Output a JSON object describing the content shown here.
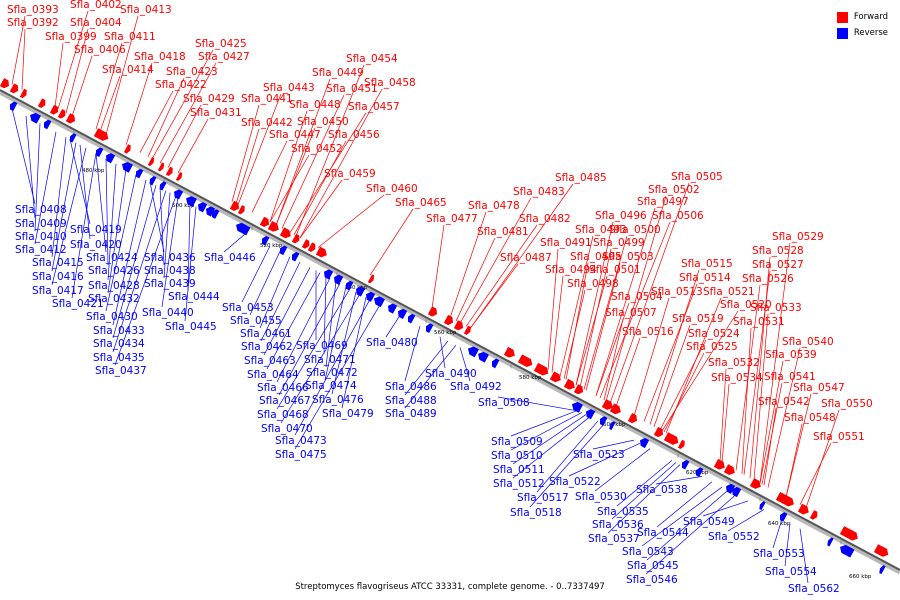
{
  "legend": {
    "forward": {
      "label": "Forward",
      "color": "#ff0000"
    },
    "reverse": {
      "label": "Reverse",
      "color": "#0000ff"
    }
  },
  "caption": "Streptomyces flavogriseus ATCC 33331, complete genome. - 0..7337497",
  "ticks": [
    "480 kbp",
    "500 kbp",
    "520 kbp",
    "540 kbp",
    "560 kbp",
    "580 kbp",
    "600 kbp",
    "620 kbp",
    "640 kbp",
    "660 kbp"
  ],
  "forward_genes": [
    "Sfla_0393",
    "Sfla_0392",
    "Sfla_0402",
    "Sfla_0404",
    "Sfla_0399",
    "Sfla_0413",
    "Sfla_0411",
    "Sfla_0406",
    "Sfla_0414",
    "Sfla_0418",
    "Sfla_0425",
    "Sfla_0427",
    "Sfla_0423",
    "Sfla_0422",
    "Sfla_0429",
    "Sfla_0431",
    "Sfla_0443",
    "Sfla_0441",
    "Sfla_0442",
    "Sfla_0447",
    "Sfla_0454",
    "Sfla_0449",
    "Sfla_0451",
    "Sfla_0458",
    "Sfla_0448",
    "Sfla_0457",
    "Sfla_0450",
    "Sfla_0456",
    "Sfla_0452",
    "Sfla_0459",
    "Sfla_0460",
    "Sfla_0465",
    "Sfla_0485",
    "Sfla_0483",
    "Sfla_0478",
    "Sfla_0477",
    "Sfla_0482",
    "Sfla_0481",
    "Sfla_0487",
    "Sfla_0505",
    "Sfla_0502",
    "Sfla_0497",
    "Sfla_0496",
    "Sfla_0506",
    "Sfla_0493",
    "Sfla_0500",
    "Sfla_0491",
    "Sfla_0499",
    "Sfla_0495",
    "Sfla_0503",
    "Sfla_0494",
    "Sfla_0501",
    "Sfla_0498",
    "Sfla_0504",
    "Sfla_0507",
    "Sfla_0515",
    "Sfla_0514",
    "Sfla_0513",
    "Sfla_0516",
    "Sfla_0521",
    "Sfla_0519",
    "Sfla_0520",
    "Sfla_0525",
    "Sfla_0524",
    "Sfla_0529",
    "Sfla_0528",
    "Sfla_0527",
    "Sfla_0526",
    "Sfla_0533",
    "Sfla_0531",
    "Sfla_0532",
    "Sfla_0534",
    "Sfla_0540",
    "Sfla_0539",
    "Sfla_0541",
    "Sfla_0547",
    "Sfla_0542",
    "Sfla_0550",
    "Sfla_0548",
    "Sfla_0551"
  ],
  "reverse_genes": [
    "Sfla_0408",
    "Sfla_0409",
    "Sfla_0410",
    "Sfla_0412",
    "Sfla_0415",
    "Sfla_0416",
    "Sfla_0417",
    "Sfla_0421",
    "Sfla_0419",
    "Sfla_0420",
    "Sfla_0424",
    "Sfla_0426",
    "Sfla_0428",
    "Sfla_0432",
    "Sfla_0430",
    "Sfla_0433",
    "Sfla_0434",
    "Sfla_0435",
    "Sfla_0437",
    "Sfla_0436",
    "Sfla_0438",
    "Sfla_0439",
    "Sfla_0444",
    "Sfla_0440",
    "Sfla_0445",
    "Sfla_0446",
    "Sfla_0453",
    "Sfla_0455",
    "Sfla_0461",
    "Sfla_0462",
    "Sfla_0463",
    "Sfla_0464",
    "Sfla_0466",
    "Sfla_0467",
    "Sfla_0468",
    "Sfla_0470",
    "Sfla_0473",
    "Sfla_0475",
    "Sfla_0469",
    "Sfla_0471",
    "Sfla_0472",
    "Sfla_0474",
    "Sfla_0476",
    "Sfla_0479",
    "Sfla_0480",
    "Sfla_0490",
    "Sfla_0486",
    "Sfla_0492",
    "Sfla_0488",
    "Sfla_0489",
    "Sfla_0508",
    "Sfla_0509",
    "Sfla_0510",
    "Sfla_0511",
    "Sfla_0512",
    "Sfla_0517",
    "Sfla_0518",
    "Sfla_0523",
    "Sfla_0522",
    "Sfla_0530",
    "Sfla_0538",
    "Sfla_0535",
    "Sfla_0536",
    "Sfla_0537",
    "Sfla_0544",
    "Sfla_0543",
    "Sfla_0545",
    "Sfla_0546",
    "Sfla_0549",
    "Sfla_0552",
    "Sfla_0553",
    "Sfla_0554",
    "Sfla_0562"
  ]
}
